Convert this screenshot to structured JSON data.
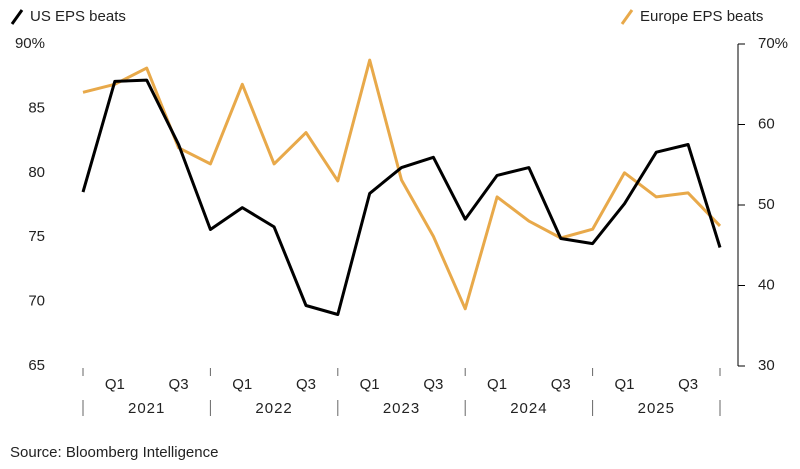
{
  "chart_data": {
    "type": "line",
    "categories": [
      null,
      "Q1",
      null,
      "Q3",
      null,
      "Q1",
      null,
      "Q3",
      null,
      "Q1",
      null,
      "Q3",
      null,
      "Q1",
      null,
      "Q3",
      null,
      "Q1",
      null,
      "Q3",
      null
    ],
    "years": [
      "2021",
      "2022",
      "2023",
      "2024",
      "2025"
    ],
    "series": [
      {
        "name": "US EPS beats",
        "color": "#000000",
        "axis": "y",
        "values": [
          78.5,
          87.1,
          87.2,
          82.2,
          75.6,
          77.3,
          75.8,
          69.7,
          69.0,
          78.4,
          80.4,
          81.2,
          76.4,
          79.8,
          80.4,
          74.9,
          74.5,
          77.6,
          81.6,
          82.2,
          74.2
        ]
      },
      {
        "name": "Europe EPS beats",
        "color": "#e8a94a",
        "axis": "y2",
        "values": [
          64.0,
          65.0,
          67.0,
          57.1,
          55.1,
          65.0,
          55.1,
          59.0,
          53.0,
          68.0,
          53.1,
          46.1,
          37.1,
          51.0,
          48.0,
          45.9,
          47.0,
          54.0,
          51.0,
          51.5,
          47.4
        ]
      }
    ],
    "ylim": [
      65,
      90
    ],
    "yticks": [
      65,
      70,
      75,
      80,
      85,
      {
        "value": 90,
        "label": "90%"
      }
    ],
    "y2lim": [
      30,
      70
    ],
    "y2ticks": [
      30,
      40,
      50,
      60,
      {
        "value": 70,
        "label": "70%"
      }
    ],
    "grid": false,
    "source": "Source: Bloomberg Intelligence"
  }
}
